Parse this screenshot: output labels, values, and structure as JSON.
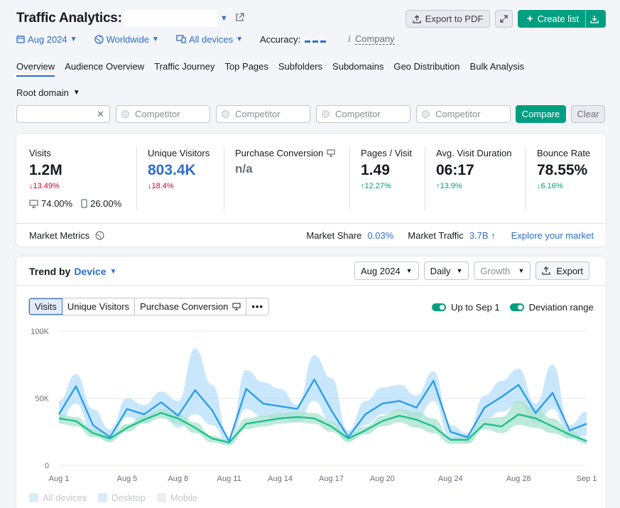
{
  "header": {
    "title": "Traffic Analytics:",
    "export_pdf": "Export to PDF",
    "create_list": "Create list"
  },
  "filters": {
    "date": "Aug 2024",
    "region": "Worldwide",
    "devices": "All devices",
    "accuracy_label": "Accuracy:",
    "company": "Company"
  },
  "tabs": [
    "Overview",
    "Audience Overview",
    "Traffic Journey",
    "Top Pages",
    "Subfolders",
    "Subdomains",
    "Geo Distribution",
    "Bulk Analysis"
  ],
  "root_domain": "Root domain",
  "compare": {
    "competitor_placeholder": "Competitor",
    "compare_btn": "Compare",
    "clear_btn": "Clear"
  },
  "metrics": {
    "visits": {
      "label": "Visits",
      "value": "1.2M",
      "delta": "↓13.49%"
    },
    "desktop_share": "74.00%",
    "mobile_share": "26.00%",
    "unique_visitors": {
      "label": "Unique Visitors",
      "value": "803.4K",
      "delta": "↓18.4%"
    },
    "purchase_conversion": {
      "label": "Purchase Conversion",
      "value": "n/a"
    },
    "pages_visit": {
      "label": "Pages / Visit",
      "value": "1.49",
      "delta": "↑12.27%"
    },
    "avg_duration": {
      "label": "Avg. Visit Duration",
      "value": "06:17",
      "delta": "↑13.9%"
    },
    "bounce_rate": {
      "label": "Bounce Rate",
      "value": "78.55%",
      "delta": "↓6.16%"
    }
  },
  "market": {
    "metrics_label": "Market Metrics",
    "share_label": "Market Share",
    "share_value": "0.03%",
    "traffic_label": "Market Traffic",
    "traffic_value": "3.7B ↑",
    "explore": "Explore your market"
  },
  "trend": {
    "title": "Trend by",
    "by": "Device",
    "date_select": "Aug 2024",
    "granularity": "Daily",
    "metric_select": "Growth",
    "export": "Export",
    "seg_visits": "Visits",
    "seg_unique": "Unique Visitors",
    "seg_purchase": "Purchase Conversion",
    "toggle_up_to": "Up to Sep 1",
    "toggle_deviation": "Deviation range",
    "legend": [
      "All devices",
      "Desktop",
      "Mobile"
    ]
  },
  "colors": {
    "blue_line": "#2d9de8",
    "blue_band": "#bfe3fb",
    "green_line": "#1fbf8f",
    "green_band": "#a8e3cd"
  },
  "chart_data": {
    "type": "line",
    "y_ticks": [
      "0",
      "50K",
      "100K"
    ],
    "ylim": [
      0,
      100000
    ],
    "x_tick_labels": [
      "Aug 1",
      "Aug 5",
      "Aug 8",
      "Aug 11",
      "Aug 14",
      "Aug 17",
      "Aug 20",
      "Aug 24",
      "Aug 28",
      "Sep 1"
    ],
    "x_tick_days": [
      1,
      5,
      8,
      11,
      14,
      17,
      20,
      24,
      28,
      32
    ],
    "days": [
      1,
      2,
      3,
      4,
      5,
      6,
      7,
      8,
      9,
      10,
      11,
      12,
      13,
      14,
      15,
      16,
      17,
      18,
      19,
      20,
      21,
      22,
      23,
      24,
      25,
      26,
      27,
      28,
      29,
      30,
      31,
      32
    ],
    "series": [
      {
        "values": [
          38000,
          59000,
          30000,
          21000,
          42000,
          38000,
          47000,
          37000,
          56000,
          41000,
          18000,
          57000,
          46000,
          44000,
          42000,
          64000,
          41000,
          21000,
          38000,
          46000,
          48000,
          43000,
          63000,
          25000,
          21000,
          43000,
          51000,
          60000,
          39000,
          54000,
          26000,
          31000
        ],
        "upper": [
          48000,
          68000,
          42000,
          27000,
          50000,
          45000,
          55000,
          48000,
          87000,
          60000,
          19000,
          71000,
          62000,
          57000,
          45000,
          82000,
          65000,
          26000,
          48000,
          58000,
          60000,
          52000,
          70000,
          30000,
          24000,
          52000,
          63000,
          72000,
          46000,
          75000,
          30000,
          40000
        ],
        "lower": [
          32000,
          46000,
          23000,
          17000,
          36000,
          32000,
          39000,
          28000,
          38000,
          30000,
          15000,
          42000,
          36000,
          35000,
          32000,
          48000,
          31000,
          17000,
          30000,
          38000,
          40000,
          34000,
          48000,
          20000,
          17000,
          34000,
          40000,
          46000,
          31000,
          42000,
          20000,
          22000
        ]
      },
      {
        "values": [
          35000,
          33000,
          24000,
          20000,
          28000,
          34000,
          39000,
          35000,
          28000,
          20000,
          17000,
          31000,
          33000,
          35000,
          36000,
          35000,
          29000,
          20000,
          26000,
          33000,
          37000,
          34000,
          29000,
          19000,
          19000,
          31000,
          29000,
          38000,
          35000,
          29000,
          23000,
          18000
        ],
        "upper": [
          38000,
          36000,
          27000,
          22000,
          31000,
          37000,
          42000,
          38000,
          32000,
          22000,
          19000,
          35000,
          37000,
          39000,
          40000,
          39000,
          33000,
          22000,
          29000,
          37000,
          42000,
          40000,
          35000,
          21000,
          22000,
          35000,
          36000,
          48000,
          42000,
          35000,
          26000,
          20000
        ],
        "lower": [
          31000,
          29000,
          21000,
          18000,
          25000,
          31000,
          35000,
          31000,
          24000,
          17000,
          15000,
          27000,
          29000,
          31000,
          32000,
          31000,
          25000,
          18000,
          23000,
          29000,
          32000,
          28000,
          24000,
          16000,
          16000,
          27000,
          24000,
          30000,
          28000,
          24000,
          20000,
          16000
        ]
      }
    ]
  }
}
